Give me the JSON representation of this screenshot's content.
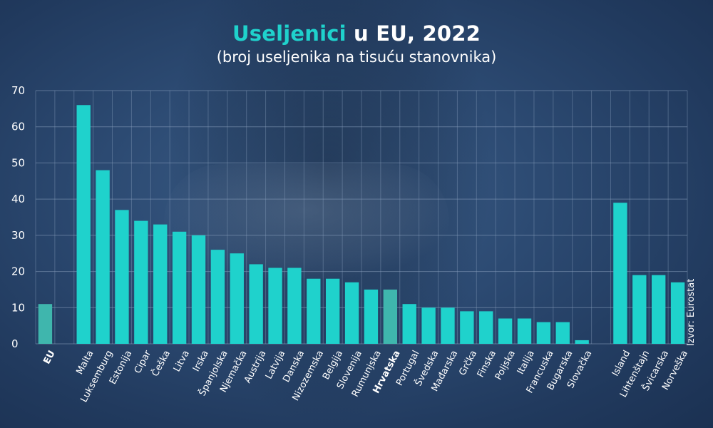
{
  "title": {
    "accent": "Useljenici",
    "rest": "u EU, 2022"
  },
  "subtitle": "(broj useljenika na tisuću stanovnika)",
  "source": "Izvor: Eurostat",
  "colors": {
    "bar": "#1fd2cc",
    "highlight_bar": "#3fb6ad",
    "grid": "#8aa0be",
    "text": "#ffffff"
  },
  "chart_data": {
    "type": "bar",
    "title": "Useljenici u EU, 2022",
    "subtitle": "(broj useljenika na tisuću stanovnika)",
    "ylim": [
      0,
      70
    ],
    "yticks": [
      0,
      10,
      20,
      30,
      40,
      50,
      60,
      70
    ],
    "grid": true,
    "categories": [
      "EU",
      "",
      "Malta",
      "Luksemburg",
      "Estonija",
      "Cipar",
      "Češka",
      "Litva",
      "Irska",
      "Španjolska",
      "Njemačka",
      "Austrija",
      "Latvija",
      "Danska",
      "Nizozemska",
      "Belgija",
      "Slovenija",
      "Rumunjska",
      "Hrvatska",
      "Portugal",
      "Švedska",
      "Mađarska",
      "Grčka",
      "Finska",
      "Poljska",
      "Italija",
      "Francuska",
      "Bugarska",
      "Slovačka",
      "",
      "Island",
      "Lihtenštajn",
      "Švicarska",
      "Norveška"
    ],
    "values": [
      11,
      null,
      66,
      48,
      37,
      34,
      33,
      31,
      30,
      26,
      25,
      22,
      21,
      21,
      18,
      18,
      17,
      15,
      15,
      11,
      10,
      10,
      9,
      9,
      7,
      7,
      6,
      6,
      1,
      null,
      39,
      19,
      19,
      17
    ],
    "highlighted": [
      "EU",
      "Hrvatska"
    ]
  }
}
